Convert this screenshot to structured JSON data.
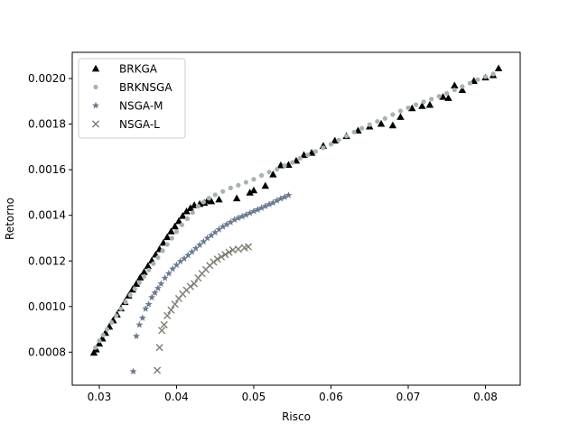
{
  "chart_data": {
    "type": "scatter",
    "title": "",
    "xlabel": "Risco",
    "ylabel": "Retorno",
    "xlim": [
      0.0265,
      0.0845
    ],
    "ylim": [
      0.000655,
      0.002115
    ],
    "x_ticks": [
      0.03,
      0.04,
      0.05,
      0.06,
      0.07,
      0.08
    ],
    "x_tick_labels": [
      "0.03",
      "0.04",
      "0.05",
      "0.06",
      "0.07",
      "0.08"
    ],
    "y_ticks": [
      0.0008,
      0.001,
      0.0012,
      0.0014,
      0.0016,
      0.0018,
      0.002
    ],
    "y_tick_labels": [
      "0.0008",
      "0.0010",
      "0.0012",
      "0.0014",
      "0.0016",
      "0.0018",
      "0.0020"
    ],
    "grid": false,
    "legend_position": "upper-left",
    "series": [
      {
        "name": "BRKGA",
        "marker": "triangle",
        "color": "#000000",
        "points": [
          [
            0.0293,
            0.000798
          ],
          [
            0.0296,
            0.000812
          ],
          [
            0.03,
            0.000838
          ],
          [
            0.0304,
            0.00086
          ],
          [
            0.0308,
            0.000885
          ],
          [
            0.0313,
            0.000912
          ],
          [
            0.0318,
            0.00094
          ],
          [
            0.0323,
            0.000965
          ],
          [
            0.0328,
            0.000992
          ],
          [
            0.0333,
            0.00102
          ],
          [
            0.0338,
            0.001048
          ],
          [
            0.0343,
            0.001075
          ],
          [
            0.0348,
            0.0011
          ],
          [
            0.0353,
            0.001128
          ],
          [
            0.0358,
            0.001152
          ],
          [
            0.0363,
            0.001178
          ],
          [
            0.0368,
            0.001202
          ],
          [
            0.0373,
            0.001228
          ],
          [
            0.0378,
            0.001252
          ],
          [
            0.0383,
            0.00128
          ],
          [
            0.0388,
            0.001305
          ],
          [
            0.0393,
            0.00133
          ],
          [
            0.0398,
            0.001352
          ],
          [
            0.0403,
            0.001375
          ],
          [
            0.0408,
            0.001398
          ],
          [
            0.0413,
            0.001418
          ],
          [
            0.0418,
            0.001432
          ],
          [
            0.0423,
            0.001445
          ],
          [
            0.043,
            0.00145
          ],
          [
            0.0436,
            0.001455
          ],
          [
            0.044,
            0.001465
          ],
          [
            0.0445,
            0.001462
          ],
          [
            0.0455,
            0.00147
          ],
          [
            0.0478,
            0.001475
          ],
          [
            0.0495,
            0.0015
          ],
          [
            0.05,
            0.00151
          ],
          [
            0.0515,
            0.00153
          ],
          [
            0.0525,
            0.00158
          ],
          [
            0.0535,
            0.00162
          ],
          [
            0.0545,
            0.001622
          ],
          [
            0.0555,
            0.00164
          ],
          [
            0.0565,
            0.001665
          ],
          [
            0.0575,
            0.001675
          ],
          [
            0.059,
            0.001705
          ],
          [
            0.0605,
            0.001728
          ],
          [
            0.062,
            0.001748
          ],
          [
            0.0635,
            0.001772
          ],
          [
            0.065,
            0.00179
          ],
          [
            0.0665,
            0.001802
          ],
          [
            0.068,
            0.001795
          ],
          [
            0.069,
            0.001832
          ],
          [
            0.0705,
            0.00187
          ],
          [
            0.0718,
            0.00188
          ],
          [
            0.0728,
            0.001885
          ],
          [
            0.0745,
            0.00192
          ],
          [
            0.0752,
            0.001915
          ],
          [
            0.076,
            0.00197
          ],
          [
            0.077,
            0.00195
          ],
          [
            0.0785,
            0.00199
          ],
          [
            0.08,
            0.002005
          ],
          [
            0.081,
            0.002015
          ],
          [
            0.0817,
            0.002045
          ]
        ]
      },
      {
        "name": "BRKNSGA",
        "marker": "circle",
        "color": "#a6b3ae",
        "points": [
          [
            0.0295,
            0.00082
          ],
          [
            0.03,
            0.00085
          ],
          [
            0.0305,
            0.000875
          ],
          [
            0.031,
            0.0009
          ],
          [
            0.0316,
            0.00093
          ],
          [
            0.0322,
            0.00096
          ],
          [
            0.0328,
            0.00099
          ],
          [
            0.0334,
            0.00102
          ],
          [
            0.034,
            0.00105
          ],
          [
            0.0346,
            0.001078
          ],
          [
            0.0352,
            0.001105
          ],
          [
            0.0358,
            0.001132
          ],
          [
            0.0364,
            0.00116
          ],
          [
            0.037,
            0.001188
          ],
          [
            0.0376,
            0.001215
          ],
          [
            0.0382,
            0.001245
          ],
          [
            0.0388,
            0.001272
          ],
          [
            0.0394,
            0.0013
          ],
          [
            0.04,
            0.001328
          ],
          [
            0.0407,
            0.001358
          ],
          [
            0.0414,
            0.001385
          ],
          [
            0.0421,
            0.001412
          ],
          [
            0.0428,
            0.00144
          ],
          [
            0.0435,
            0.001458
          ],
          [
            0.0442,
            0.001475
          ],
          [
            0.045,
            0.00149
          ],
          [
            0.046,
            0.001505
          ],
          [
            0.047,
            0.00152
          ],
          [
            0.048,
            0.001532
          ],
          [
            0.049,
            0.001545
          ],
          [
            0.05,
            0.001558
          ],
          [
            0.051,
            0.001575
          ],
          [
            0.052,
            0.00159
          ],
          [
            0.053,
            0.001602
          ],
          [
            0.054,
            0.001618
          ],
          [
            0.055,
            0.001632
          ],
          [
            0.056,
            0.00165
          ],
          [
            0.057,
            0.001665
          ],
          [
            0.058,
            0.00168
          ],
          [
            0.059,
            0.001696
          ],
          [
            0.06,
            0.001712
          ],
          [
            0.061,
            0.00173
          ],
          [
            0.062,
            0.001748
          ],
          [
            0.063,
            0.001765
          ],
          [
            0.064,
            0.001782
          ],
          [
            0.065,
            0.001798
          ],
          [
            0.066,
            0.001812
          ],
          [
            0.067,
            0.001825
          ],
          [
            0.068,
            0.001842
          ],
          [
            0.069,
            0.001858
          ],
          [
            0.07,
            0.001872
          ],
          [
            0.071,
            0.001885
          ],
          [
            0.072,
            0.001898
          ],
          [
            0.073,
            0.00191
          ],
          [
            0.074,
            0.001922
          ],
          [
            0.075,
            0.001935
          ],
          [
            0.076,
            0.00195
          ],
          [
            0.077,
            0.001965
          ],
          [
            0.078,
            0.00198
          ],
          [
            0.079,
            0.001995
          ],
          [
            0.08,
            0.002008
          ],
          [
            0.081,
            0.00202
          ]
        ]
      },
      {
        "name": "NSGA-M",
        "marker": "star",
        "color": "#6b7a8f",
        "points": [
          [
            0.0344,
            0.000715
          ],
          [
            0.0348,
            0.00087
          ],
          [
            0.0352,
            0.00092
          ],
          [
            0.0356,
            0.00095
          ],
          [
            0.036,
            0.00099
          ],
          [
            0.0364,
            0.00101
          ],
          [
            0.0368,
            0.00104
          ],
          [
            0.0372,
            0.00106
          ],
          [
            0.0376,
            0.00108
          ],
          [
            0.038,
            0.0011
          ],
          [
            0.0385,
            0.001125
          ],
          [
            0.039,
            0.001145
          ],
          [
            0.0395,
            0.001165
          ],
          [
            0.04,
            0.001182
          ],
          [
            0.0405,
            0.001198
          ],
          [
            0.041,
            0.00121
          ],
          [
            0.0415,
            0.001225
          ],
          [
            0.042,
            0.00124
          ],
          [
            0.0425,
            0.001255
          ],
          [
            0.043,
            0.00127
          ],
          [
            0.0435,
            0.001285
          ],
          [
            0.044,
            0.0013
          ],
          [
            0.0445,
            0.001312
          ],
          [
            0.045,
            0.001325
          ],
          [
            0.0455,
            0.001338
          ],
          [
            0.046,
            0.00135
          ],
          [
            0.0465,
            0.00136
          ],
          [
            0.047,
            0.00137
          ],
          [
            0.0475,
            0.00138
          ],
          [
            0.048,
            0.001388
          ],
          [
            0.0485,
            0.001395
          ],
          [
            0.049,
            0.001402
          ],
          [
            0.0495,
            0.00141
          ],
          [
            0.05,
            0.001418
          ],
          [
            0.0505,
            0.001425
          ],
          [
            0.051,
            0.001432
          ],
          [
            0.0515,
            0.00144
          ],
          [
            0.052,
            0.001448
          ],
          [
            0.0525,
            0.001455
          ],
          [
            0.053,
            0.001465
          ],
          [
            0.0535,
            0.001473
          ],
          [
            0.054,
            0.00148
          ],
          [
            0.0545,
            0.001488
          ]
        ]
      },
      {
        "name": "NSGA-L",
        "marker": "x",
        "color": "#7b8072",
        "points": [
          [
            0.0375,
            0.00072
          ],
          [
            0.0378,
            0.00082
          ],
          [
            0.0381,
            0.000895
          ],
          [
            0.0384,
            0.00092
          ],
          [
            0.0388,
            0.00096
          ],
          [
            0.0393,
            0.000985
          ],
          [
            0.0398,
            0.00101
          ],
          [
            0.0403,
            0.001035
          ],
          [
            0.0408,
            0.001055
          ],
          [
            0.0413,
            0.001072
          ],
          [
            0.0418,
            0.001088
          ],
          [
            0.0423,
            0.0011
          ],
          [
            0.0428,
            0.001125
          ],
          [
            0.0433,
            0.001145
          ],
          [
            0.0438,
            0.001162
          ],
          [
            0.0443,
            0.00118
          ],
          [
            0.0448,
            0.001195
          ],
          [
            0.0453,
            0.001208
          ],
          [
            0.0458,
            0.001218
          ],
          [
            0.0463,
            0.001228
          ],
          [
            0.0468,
            0.001238
          ],
          [
            0.0473,
            0.001248
          ],
          [
            0.048,
            0.001252
          ],
          [
            0.0488,
            0.001258
          ],
          [
            0.0493,
            0.001262
          ]
        ]
      }
    ]
  }
}
